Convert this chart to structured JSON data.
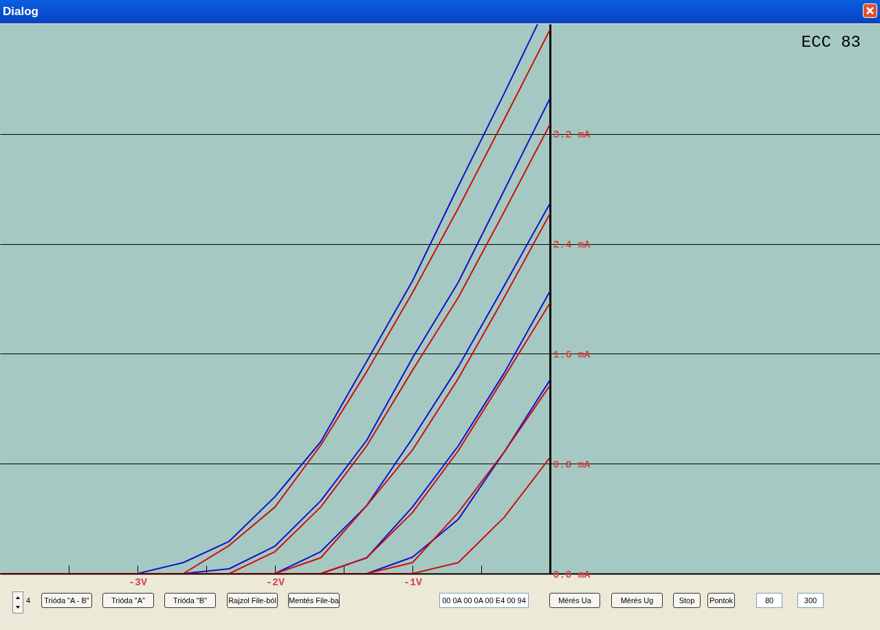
{
  "chart_data": {
    "type": "line",
    "title": "ECC 83",
    "annotations": [
      "Dialog",
      "4",
      "Trióda \"A - B\"",
      "Trióda \"A\"",
      "Trióda \"B\"",
      "Rajzol File-ból",
      "Mentés File-ba",
      "00 0A 00 0A 00 E4 00 94",
      "Mérés Ua",
      "Mérés Ug",
      "Stop",
      "Pontok",
      "80",
      "300"
    ],
    "series": [
      {
        "color": "#1010c8",
        "x": [
          -3,
          -2.667,
          -2.333,
          -2,
          -1.667,
          -1.333,
          -1,
          -0.667,
          -0.333,
          -0.09
        ],
        "values": [
          0,
          0.08,
          0.235,
          0.56,
          0.96,
          1.545,
          2.13,
          2.82,
          3.495,
          4.0
        ]
      },
      {
        "color": "#c81010",
        "x": [
          -2.667,
          -2.333,
          -2,
          -1.667,
          -1.333,
          -1,
          -0.667,
          -0.333,
          0
        ],
        "values": [
          0,
          0.205,
          0.485,
          0.935,
          1.47,
          2.045,
          2.66,
          3.305,
          3.96
        ]
      },
      {
        "color": "#1010c8",
        "x": [
          -2.667,
          -2.333,
          -2,
          -1.667,
          -1.333,
          -1,
          -0.667,
          -0.333,
          0
        ],
        "values": [
          0,
          0.035,
          0.2,
          0.53,
          0.97,
          1.57,
          2.12,
          2.79,
          3.46
        ]
      },
      {
        "color": "#c81010",
        "x": [
          -2.333,
          -2,
          -1.667,
          -1.333,
          -1,
          -0.667,
          -0.333,
          0
        ],
        "values": [
          0,
          0.16,
          0.485,
          0.93,
          1.48,
          2.01,
          2.635,
          3.27
        ]
      },
      {
        "color": "#1010c8",
        "x": [
          -2,
          -1.667,
          -1.333,
          -1,
          -0.667,
          -0.333,
          0
        ],
        "values": [
          0,
          0.16,
          0.495,
          0.985,
          1.505,
          2.095,
          2.695
        ]
      },
      {
        "color": "#c81010",
        "x": [
          -2,
          -1.667,
          -1.333,
          -1,
          -0.667,
          -0.333,
          0
        ],
        "values": [
          0,
          0.115,
          0.495,
          0.9,
          1.42,
          2.01,
          2.62
        ]
      },
      {
        "color": "#1010c8",
        "x": [
          -1.667,
          -1.333,
          -1,
          -0.667,
          -0.333,
          0
        ],
        "values": [
          0,
          0.115,
          0.485,
          0.93,
          1.46,
          2.055
        ]
      },
      {
        "color": "#c81010",
        "x": [
          -1.667,
          -1.333,
          -1,
          -0.667,
          -0.333,
          0
        ],
        "values": [
          0,
          0.115,
          0.445,
          0.895,
          1.43,
          1.97
        ]
      },
      {
        "color": "#1010c8",
        "x": [
          -1.333,
          -1,
          -0.667,
          -0.333,
          0
        ],
        "values": [
          0,
          0.12,
          0.395,
          0.885,
          1.41
        ]
      },
      {
        "color": "#c81010",
        "x": [
          -1.333,
          -1,
          -0.667,
          -0.333,
          0
        ],
        "values": [
          0,
          0.08,
          0.445,
          0.885,
          1.37
        ]
      },
      {
        "color": "#c81010",
        "x": [
          -4,
          -1,
          -0.667,
          -0.333,
          0
        ],
        "values": [
          0,
          0,
          0.08,
          0.41,
          0.845
        ]
      }
    ],
    "xlim": [
      -4,
      2.4
    ],
    "xticks": [
      {
        "value": -3.5,
        "label": null
      },
      {
        "value": -3,
        "label": "-3V"
      },
      {
        "value": -2.5,
        "label": null
      },
      {
        "value": -2,
        "label": "-2V"
      },
      {
        "value": -1.5,
        "label": null
      },
      {
        "value": -1,
        "label": "-1V"
      },
      {
        "value": -0.5,
        "label": null
      }
    ],
    "ylim": [
      0,
      4.0
    ],
    "yticks": [
      {
        "value": 0,
        "label": "0.0 mA"
      },
      {
        "value": 0.8,
        "label": "0.8 mA"
      },
      {
        "value": 1.6,
        "label": "1.6 mA"
      },
      {
        "value": 2.4,
        "label": "2.4 mA"
      },
      {
        "value": 3.2,
        "label": "3.2 mA"
      }
    ],
    "grid": "y",
    "legend": false,
    "marker": "none",
    "line_style": "solid"
  }
}
